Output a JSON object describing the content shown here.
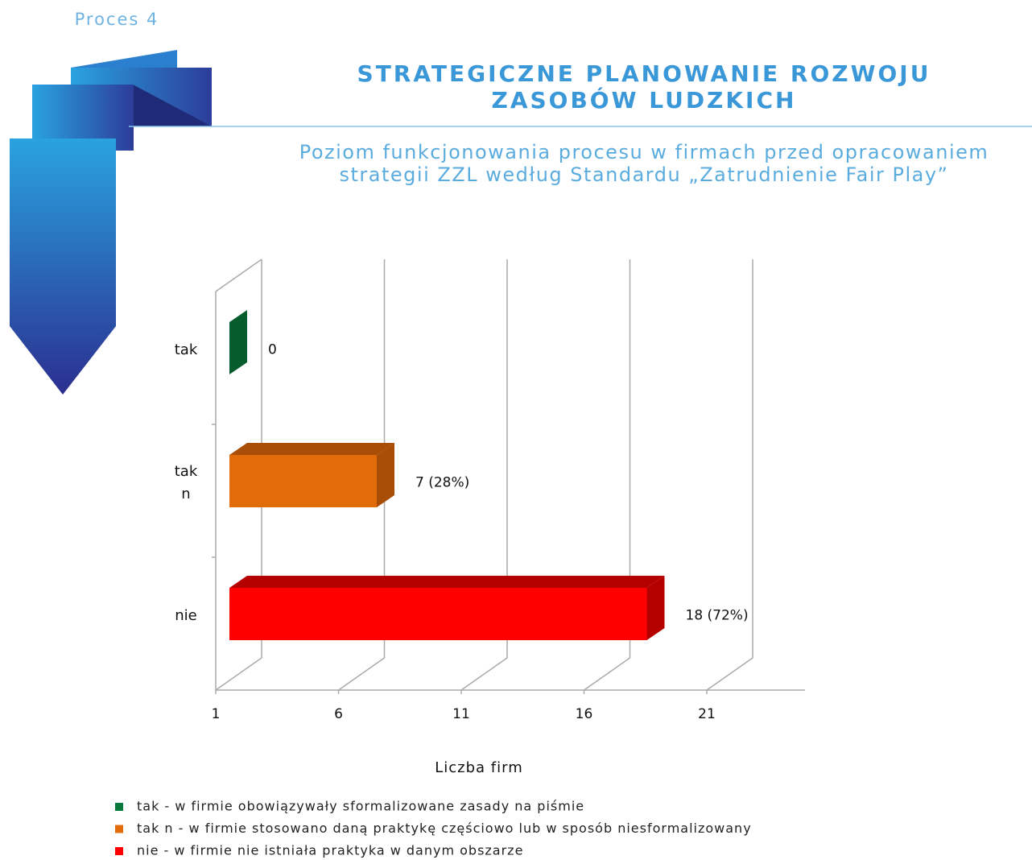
{
  "section": "Proces 4",
  "chart_data": {
    "type": "bar",
    "orientation": "horizontal",
    "title": [
      "STRATEGICZNE PLANOWANIE ROZWOJU",
      "ZASOBÓW LUDZKICH"
    ],
    "subtitle": [
      "Poziom funkcjonowania procesu w firmach przed opracowaniem",
      "strategii ZZL według Standardu „Zatrudnienie Fair Play”"
    ],
    "categories": [
      "tak",
      "tak n",
      "nie"
    ],
    "values": [
      0,
      7,
      18
    ],
    "value_labels": [
      "0",
      "7 (28%)",
      "18 (72%)"
    ],
    "colors": [
      "#0a7a3c",
      "#e36c0a",
      "#ff0000"
    ],
    "side_colors": [
      "#075c2d",
      "#a84e06",
      "#b50000"
    ],
    "xlabel": "Liczba firm",
    "xlim": [
      1,
      25
    ],
    "xticks": [
      1,
      6,
      11,
      16,
      21
    ],
    "grid": true,
    "legend": [
      "tak - w firmie obowiązywały sformalizowane zasady na piśmie",
      "tak n - w firmie stosowano daną praktykę częściowo lub w sposób niesformalizowany",
      "nie - w firmie nie istniała praktyka w danym obszarze"
    ]
  }
}
